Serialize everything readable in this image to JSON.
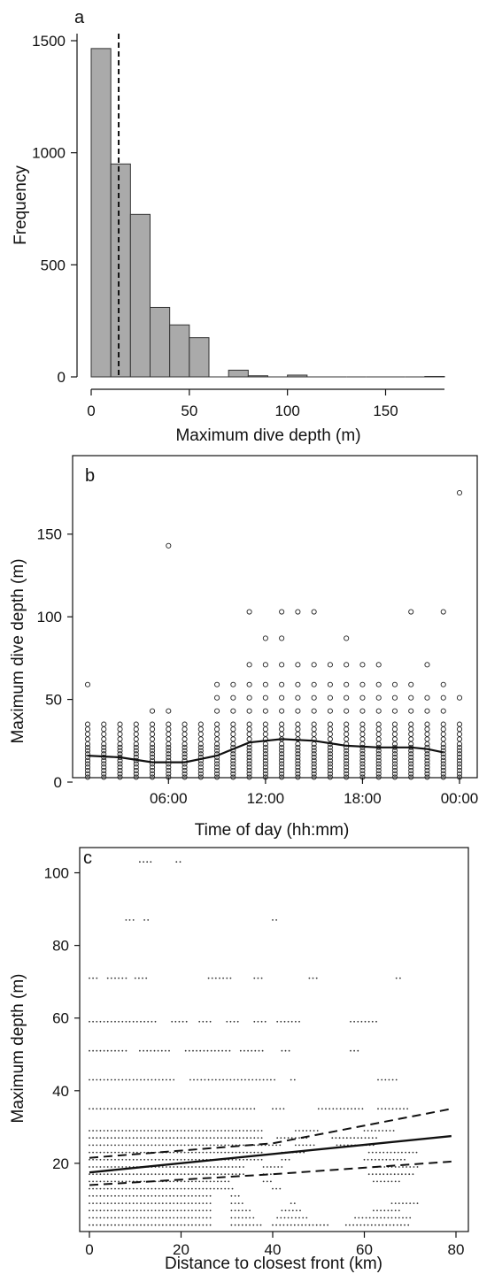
{
  "chart_data": [
    {
      "panel_label": "a",
      "type": "bar",
      "xlabel": "Maximum dive depth (m)",
      "ylabel": "Frequency",
      "xlim": [
        0,
        180
      ],
      "ylim": [
        0,
        1500
      ],
      "x_ticks": [
        "0",
        "50",
        "100",
        "150"
      ],
      "y_ticks": [
        "0",
        "500",
        "1000",
        "1500"
      ],
      "bin_width": 10,
      "bins": [
        {
          "x0": 0,
          "x1": 10,
          "count": 1465
        },
        {
          "x0": 10,
          "x1": 20,
          "count": 950
        },
        {
          "x0": 20,
          "x1": 30,
          "count": 725
        },
        {
          "x0": 30,
          "x1": 40,
          "count": 310
        },
        {
          "x0": 40,
          "x1": 50,
          "count": 232
        },
        {
          "x0": 50,
          "x1": 60,
          "count": 175
        },
        {
          "x0": 60,
          "x1": 70,
          "count": 0
        },
        {
          "x0": 70,
          "x1": 80,
          "count": 30
        },
        {
          "x0": 80,
          "x1": 90,
          "count": 5
        },
        {
          "x0": 90,
          "x1": 100,
          "count": 0
        },
        {
          "x0": 100,
          "x1": 110,
          "count": 8
        },
        {
          "x0": 110,
          "x1": 120,
          "count": 0
        },
        {
          "x0": 120,
          "x1": 130,
          "count": 0
        },
        {
          "x0": 130,
          "x1": 140,
          "count": 0
        },
        {
          "x0": 140,
          "x1": 150,
          "count": 0
        },
        {
          "x0": 150,
          "x1": 160,
          "count": 0
        },
        {
          "x0": 160,
          "x1": 170,
          "count": 0
        },
        {
          "x0": 170,
          "x1": 180,
          "count": 2
        }
      ],
      "reference_line_x": 14,
      "colors": {
        "bar": "#aaaaaa",
        "outline": "#333333"
      }
    },
    {
      "panel_label": "b",
      "type": "scatter",
      "xlabel": "Time of day (hh:mm)",
      "ylabel": "Maximum dive depth (m)",
      "xlim": [
        0,
        24
      ],
      "ylim": [
        0,
        175
      ],
      "x_ticks": [
        {
          "value": 6,
          "label": "06:00"
        },
        {
          "value": 12,
          "label": "12:00"
        },
        {
          "value": 18,
          "label": "18:00"
        },
        {
          "value": 24,
          "label": "00:00"
        }
      ],
      "y_ticks": [
        "0",
        "50",
        "100",
        "150"
      ],
      "hours": [
        1,
        2,
        3,
        4,
        5,
        6,
        7,
        8,
        9,
        10,
        11,
        12,
        13,
        14,
        15,
        16,
        17,
        18,
        19,
        20,
        21,
        22,
        23,
        24
      ],
      "base_depths": [
        3,
        5,
        7,
        9,
        11,
        13,
        15,
        17,
        19,
        21,
        23,
        26,
        29,
        32,
        35
      ],
      "hour_max_regular": [
        35,
        35,
        35,
        35,
        35,
        35,
        35,
        35,
        35,
        35,
        35,
        35,
        35,
        35,
        35,
        35,
        35,
        35,
        35,
        35,
        35,
        35,
        35,
        35
      ],
      "extra_depths": [
        {
          "hour": 1,
          "depths": [
            59
          ]
        },
        {
          "hour": 5,
          "depths": [
            43
          ]
        },
        {
          "hour": 6,
          "depths": [
            43,
            143
          ]
        },
        {
          "hour": 9,
          "depths": [
            43,
            51,
            59
          ]
        },
        {
          "hour": 10,
          "depths": [
            43,
            51,
            59
          ]
        },
        {
          "hour": 11,
          "depths": [
            43,
            51,
            59,
            71,
            103
          ]
        },
        {
          "hour": 12,
          "depths": [
            43,
            51,
            59,
            71,
            87
          ]
        },
        {
          "hour": 13,
          "depths": [
            43,
            51,
            59,
            71,
            87,
            103
          ]
        },
        {
          "hour": 14,
          "depths": [
            43,
            51,
            59,
            71,
            103
          ]
        },
        {
          "hour": 15,
          "depths": [
            43,
            51,
            59,
            71,
            103
          ]
        },
        {
          "hour": 16,
          "depths": [
            43,
            51,
            59,
            71
          ]
        },
        {
          "hour": 17,
          "depths": [
            43,
            51,
            59,
            71,
            87
          ]
        },
        {
          "hour": 18,
          "depths": [
            43,
            51,
            59,
            71
          ]
        },
        {
          "hour": 19,
          "depths": [
            43,
            51,
            59,
            71
          ]
        },
        {
          "hour": 20,
          "depths": [
            43,
            51,
            59
          ]
        },
        {
          "hour": 21,
          "depths": [
            43,
            51,
            59,
            103
          ]
        },
        {
          "hour": 22,
          "depths": [
            43,
            51,
            71
          ]
        },
        {
          "hour": 23,
          "depths": [
            43,
            51,
            59,
            103
          ]
        },
        {
          "hour": 24,
          "depths": [
            51,
            175
          ]
        }
      ],
      "smooth_curve": [
        {
          "x": 1,
          "y": 16
        },
        {
          "x": 3,
          "y": 15
        },
        {
          "x": 5,
          "y": 12
        },
        {
          "x": 7,
          "y": 12
        },
        {
          "x": 9,
          "y": 16
        },
        {
          "x": 11,
          "y": 24
        },
        {
          "x": 13,
          "y": 26
        },
        {
          "x": 15,
          "y": 25
        },
        {
          "x": 17,
          "y": 22
        },
        {
          "x": 19,
          "y": 21
        },
        {
          "x": 21,
          "y": 21
        },
        {
          "x": 22,
          "y": 20
        },
        {
          "x": 23,
          "y": 18
        }
      ]
    },
    {
      "panel_label": "c",
      "type": "scatter",
      "xlabel": "Distance to closest front (km)",
      "ylabel": "Maximum depth (m)",
      "xlim": [
        0,
        80
      ],
      "ylim": [
        0,
        105
      ],
      "x_ticks": [
        "0",
        "20",
        "40",
        "60",
        "80"
      ],
      "y_ticks": [
        "20",
        "40",
        "60",
        "80",
        "100"
      ],
      "depth_levels": [
        {
          "depth": 3,
          "x_ranges": [
            [
              0,
              27
            ],
            [
              31,
              38
            ],
            [
              40,
              52
            ],
            [
              56,
              70
            ]
          ]
        },
        {
          "depth": 5,
          "x_ranges": [
            [
              0,
              27
            ],
            [
              31,
              36
            ],
            [
              41,
              48
            ],
            [
              58,
              70
            ]
          ]
        },
        {
          "depth": 7,
          "x_ranges": [
            [
              0,
              27
            ],
            [
              31,
              35
            ],
            [
              42,
              46
            ],
            [
              62,
              68
            ]
          ]
        },
        {
          "depth": 9,
          "x_ranges": [
            [
              0,
              27
            ],
            [
              31,
              34
            ],
            [
              44,
              45
            ],
            [
              66,
              72
            ]
          ]
        },
        {
          "depth": 11,
          "x_ranges": [
            [
              0,
              27
            ],
            [
              31,
              33
            ]
          ]
        },
        {
          "depth": 13,
          "x_ranges": [
            [
              0,
              32
            ],
            [
              40,
              42
            ]
          ]
        },
        {
          "depth": 15,
          "x_ranges": [
            [
              0,
              31
            ],
            [
              38,
              40
            ],
            [
              62,
              68
            ]
          ]
        },
        {
          "depth": 17,
          "x_ranges": [
            [
              0,
              34
            ],
            [
              38,
              41
            ],
            [
              61,
              71
            ]
          ]
        },
        {
          "depth": 19,
          "x_ranges": [
            [
              0,
              34
            ],
            [
              38,
              42
            ],
            [
              62,
              72
            ]
          ]
        },
        {
          "depth": 21,
          "x_ranges": [
            [
              0,
              38
            ],
            [
              42,
              44
            ],
            [
              60,
              69
            ]
          ]
        },
        {
          "depth": 23,
          "x_ranges": [
            [
              0,
              38
            ],
            [
              42,
              47
            ],
            [
              61,
              72
            ]
          ]
        },
        {
          "depth": 25,
          "x_ranges": [
            [
              0,
              42
            ],
            [
              45,
              49
            ],
            [
              54,
              62
            ]
          ]
        },
        {
          "depth": 27,
          "x_ranges": [
            [
              0,
              38
            ],
            [
              41,
              48
            ],
            [
              53,
              63
            ]
          ]
        },
        {
          "depth": 29,
          "x_ranges": [
            [
              0,
              38
            ],
            [
              45,
              50
            ],
            [
              60,
              67
            ]
          ]
        },
        {
          "depth": 35,
          "x_ranges": [
            [
              0,
              36
            ],
            [
              40,
              43
            ],
            [
              50,
              60
            ],
            [
              63,
              70
            ]
          ]
        },
        {
          "depth": 43,
          "x_ranges": [
            [
              0,
              19
            ],
            [
              22,
              41
            ],
            [
              44,
              45
            ],
            [
              63,
              67
            ]
          ]
        },
        {
          "depth": 51,
          "x_ranges": [
            [
              0,
              8
            ],
            [
              11,
              18
            ],
            [
              21,
              31
            ],
            [
              33,
              38
            ],
            [
              42,
              44
            ],
            [
              57,
              59
            ]
          ]
        },
        {
          "depth": 59,
          "x_ranges": [
            [
              0,
              15
            ],
            [
              18,
              22
            ],
            [
              24,
              27
            ],
            [
              30,
              33
            ],
            [
              36,
              39
            ],
            [
              41,
              46
            ],
            [
              57,
              63
            ]
          ]
        },
        {
          "depth": 71,
          "x_ranges": [
            [
              0,
              2
            ],
            [
              4,
              8
            ],
            [
              10,
              13
            ],
            [
              26,
              31
            ],
            [
              36,
              38
            ],
            [
              48,
              50
            ],
            [
              67,
              68
            ]
          ]
        },
        {
          "depth": 87,
          "x_ranges": [
            [
              8,
              10
            ],
            [
              12,
              13
            ],
            [
              40,
              41
            ]
          ]
        },
        {
          "depth": 103,
          "x_ranges": [
            [
              11,
              14
            ],
            [
              19,
              20
            ]
          ]
        }
      ],
      "fit_line": [
        {
          "x": 0,
          "y": 17.5
        },
        {
          "x": 79,
          "y": 27.5
        }
      ],
      "ci_upper": [
        {
          "x": 0,
          "y": 21.5
        },
        {
          "x": 40,
          "y": 25.5
        },
        {
          "x": 79,
          "y": 35
        }
      ],
      "ci_lower": [
        {
          "x": 0,
          "y": 14
        },
        {
          "x": 40,
          "y": 17
        },
        {
          "x": 79,
          "y": 20.5
        }
      ]
    }
  ]
}
